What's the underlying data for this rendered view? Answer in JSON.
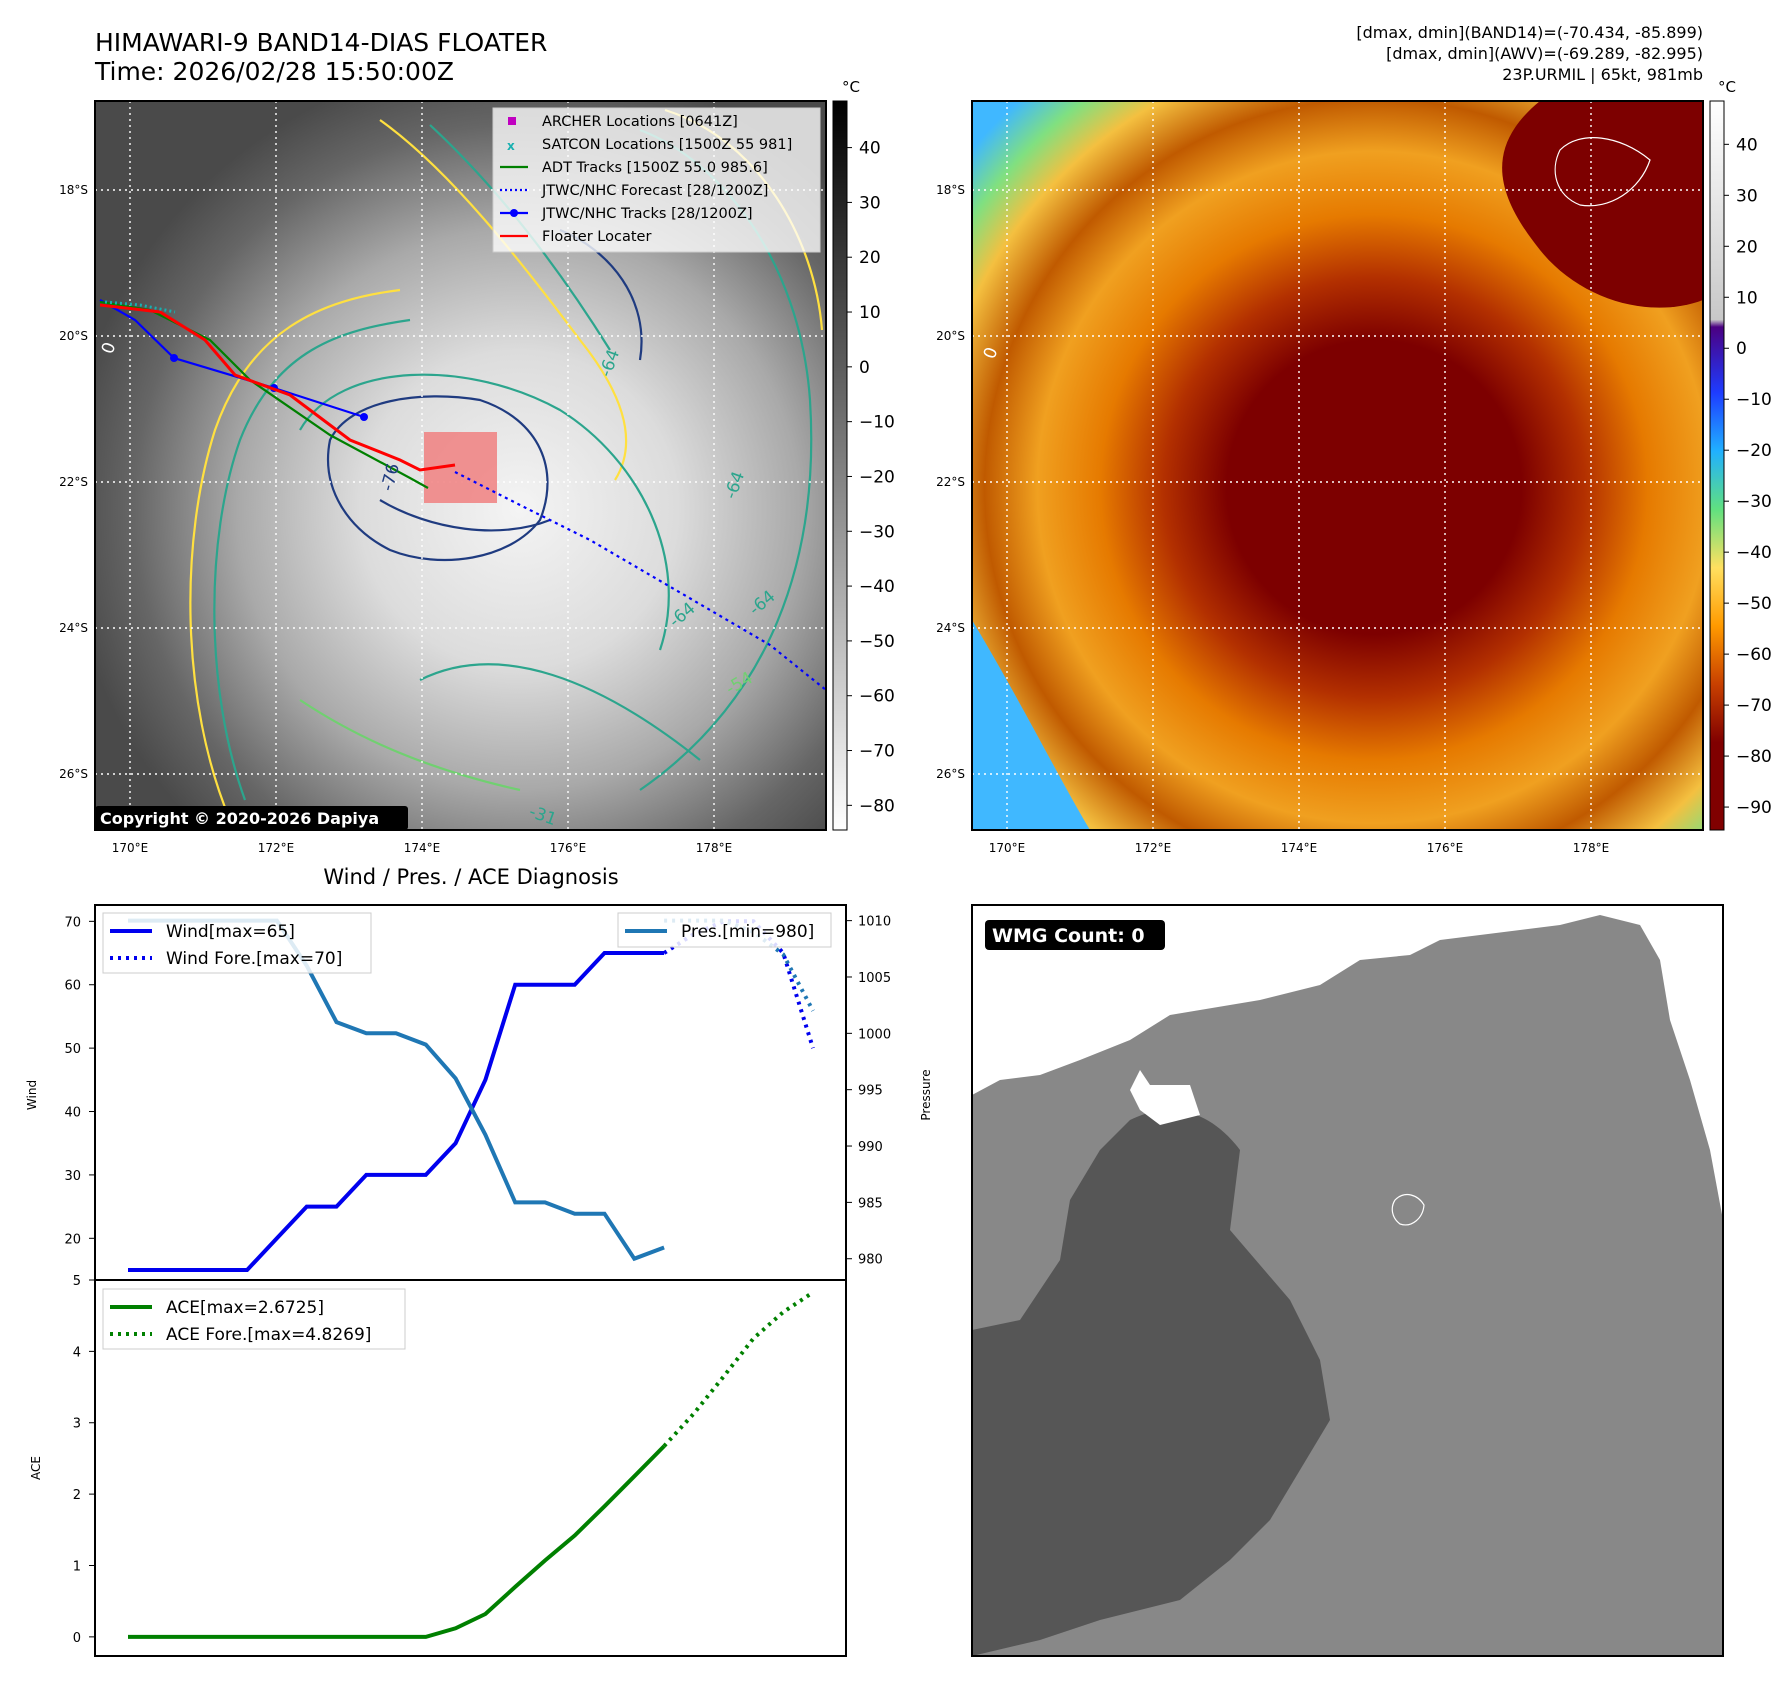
{
  "header": {
    "title": "HIMAWARI-9 BAND14-DIAS FLOATER",
    "time": "Time: 2026/02/28 15:50:00Z",
    "right_line1": "[dmax, dmin](BAND14)=(-70.434, -85.899)",
    "right_line2": "[dmax, dmin](AWV)=(-69.289, -82.995)",
    "right_line3": "23P.URMIL | 65kt, 981mb"
  },
  "map": {
    "lat_labels": [
      "18°S",
      "20°S",
      "22°S",
      "24°S",
      "26°S"
    ],
    "lon_labels": [
      "170°E",
      "172°E",
      "174°E",
      "176°E",
      "178°E"
    ],
    "copyright": "Copyright © 2020-2026 Dapiya",
    "contour_labels": [
      "0",
      "-76",
      "-64",
      "-64",
      "-64",
      "-64",
      "-54",
      "-31"
    ],
    "legend": [
      {
        "label": "ARCHER Locations [0641Z]",
        "color": "#c000c0",
        "marker": "square"
      },
      {
        "label": "SATCON Locations [1500Z 55 981]",
        "color": "#18b0b0",
        "marker": "x"
      },
      {
        "label": "ADT Tracks [1500Z 55.0 985.6]",
        "color": "#008000",
        "marker": "line"
      },
      {
        "label": "JTWC/NHC Forecast [28/1200Z]",
        "color": "#0000ff",
        "marker": "dotted"
      },
      {
        "label": "JTWC/NHC Tracks [28/1200Z]",
        "color": "#0000ff",
        "marker": "line-dot"
      },
      {
        "label": "Floater Locater",
        "color": "#ff0000",
        "marker": "line"
      }
    ]
  },
  "colorbar_gray": {
    "unit": "°C",
    "ticks": [
      "40",
      "30",
      "20",
      "10",
      "0",
      "−10",
      "−20",
      "−30",
      "−40",
      "−50",
      "−60",
      "−70",
      "−80"
    ]
  },
  "colorbar_color": {
    "unit": "°C",
    "ticks": [
      "40",
      "30",
      "20",
      "10",
      "0",
      "−10",
      "−20",
      "−30",
      "−40",
      "−50",
      "−60",
      "−70",
      "−80",
      "−90"
    ]
  },
  "wind_panel": {
    "title": "Wind / Pres. / ACE Diagnosis",
    "ylabel": "Wind",
    "ylabel_right": "Pressure",
    "legend_wind": "Wind[max=65]",
    "legend_wind_fore": "Wind Fore.[max=70]",
    "legend_pres": "Pres.[min=980]"
  },
  "ace_panel": {
    "ylabel": "ACE",
    "legend_ace": "ACE[max=2.6725]",
    "legend_ace_fore": "ACE Fore.[max=4.8269]"
  },
  "wmg": {
    "label": "WMG Count: 0"
  },
  "chart_data": [
    {
      "type": "line",
      "id": "wind_pressure",
      "x": [
        0,
        1,
        2,
        3,
        4,
        5,
        6,
        7,
        8,
        9,
        10,
        11,
        12,
        13,
        14,
        15,
        16,
        17,
        18,
        19,
        20,
        21,
        22,
        23
      ],
      "ylim": [
        15,
        71
      ],
      "ylim_right": [
        979,
        1010.5
      ],
      "yticks": [
        20,
        30,
        40,
        50,
        60,
        70
      ],
      "yticks_right": [
        980,
        985,
        990,
        995,
        1000,
        1005,
        1010
      ],
      "series": [
        {
          "name": "Wind[max=65]",
          "axis": "left",
          "color": "#0000ee",
          "style": "solid",
          "x": [
            0,
            1,
            2,
            3,
            4,
            5,
            6,
            7,
            8,
            9,
            10,
            11,
            12,
            13,
            14,
            15,
            16,
            17,
            18
          ],
          "values": [
            15,
            15,
            15,
            15,
            15,
            20,
            25,
            25,
            30,
            30,
            30,
            35,
            45,
            60,
            60,
            60,
            65,
            65,
            65
          ]
        },
        {
          "name": "Wind Fore.[max=70]",
          "axis": "left",
          "color": "#0000ee",
          "style": "dotted",
          "x": [
            18,
            19,
            20,
            21,
            22,
            23
          ],
          "values": [
            65,
            68,
            70,
            70,
            65,
            50
          ]
        },
        {
          "name": "Pres.[min=980]",
          "axis": "right",
          "color": "#1f77b4",
          "style": "solid",
          "x": [
            0,
            1,
            2,
            3,
            4,
            5,
            6,
            7,
            8,
            9,
            10,
            11,
            12,
            13,
            14,
            15,
            16,
            17,
            18
          ],
          "values": [
            1010,
            1010,
            1010,
            1010,
            1010,
            1010,
            1006,
            1001,
            1000,
            1000,
            999,
            996,
            991,
            985,
            985,
            984,
            984,
            980,
            981
          ]
        },
        {
          "name": "",
          "axis": "right",
          "color": "#1f77b4",
          "style": "dotted",
          "x": [
            18,
            19,
            20,
            21,
            22,
            23
          ],
          "values": [
            1010,
            1010,
            1010,
            1009,
            1007,
            1002
          ]
        }
      ]
    },
    {
      "type": "line",
      "id": "ace",
      "x": [
        0,
        1,
        2,
        3,
        4,
        5,
        6,
        7,
        8,
        9,
        10,
        11,
        12,
        13,
        14,
        15,
        16,
        17,
        18,
        19,
        20,
        21,
        22,
        23
      ],
      "ylim": [
        -0.1,
        5.0
      ],
      "yticks": [
        0,
        1,
        2,
        3,
        4,
        5
      ],
      "series": [
        {
          "name": "ACE[max=2.6725]",
          "color": "#008000",
          "style": "solid",
          "x": [
            0,
            1,
            2,
            3,
            4,
            5,
            6,
            7,
            8,
            9,
            10,
            11,
            12,
            13,
            14,
            15,
            16,
            17,
            18
          ],
          "values": [
            0,
            0,
            0,
            0,
            0,
            0,
            0,
            0,
            0,
            0,
            0,
            0.12,
            0.32,
            0.7,
            1.07,
            1.42,
            1.83,
            2.25,
            2.6725
          ]
        },
        {
          "name": "ACE Fore.[max=4.8269]",
          "color": "#008000",
          "style": "dotted",
          "x": [
            18,
            19,
            20,
            21,
            22,
            23
          ],
          "values": [
            2.6725,
            3.13,
            3.65,
            4.18,
            4.55,
            4.8269
          ]
        }
      ]
    }
  ]
}
